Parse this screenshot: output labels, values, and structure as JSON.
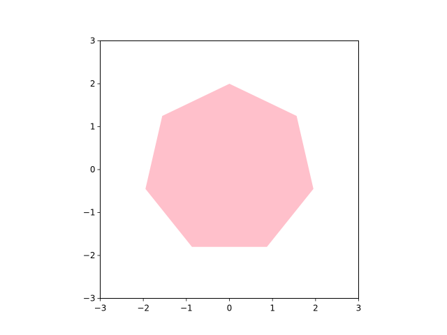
{
  "chart_data": {
    "type": "area",
    "title": "",
    "xlabel": "",
    "ylabel": "",
    "xlim": [
      -3,
      3
    ],
    "ylim": [
      -3,
      3
    ],
    "grid": false,
    "aspect": "equal",
    "fill_color": "#ffc0cb",
    "xticks": [
      -3,
      -2,
      -1,
      0,
      1,
      2,
      3
    ],
    "yticks": [
      -3,
      -2,
      -1,
      0,
      1,
      2,
      3
    ],
    "xtick_labels": [
      "−3",
      "−2",
      "−1",
      "0",
      "1",
      "2",
      "3"
    ],
    "ytick_labels": [
      "−3",
      "−2",
      "−1",
      "0",
      "1",
      "2",
      "3"
    ],
    "polygon": {
      "shape": "regular heptagon",
      "vertices": [
        {
          "x": 0.0,
          "y": 2.0
        },
        {
          "x": 1.56,
          "y": 1.25
        },
        {
          "x": 1.95,
          "y": -0.45
        },
        {
          "x": 0.87,
          "y": -1.8
        },
        {
          "x": -0.87,
          "y": -1.8
        },
        {
          "x": -1.95,
          "y": -0.45
        },
        {
          "x": -1.56,
          "y": 1.25
        }
      ]
    }
  }
}
